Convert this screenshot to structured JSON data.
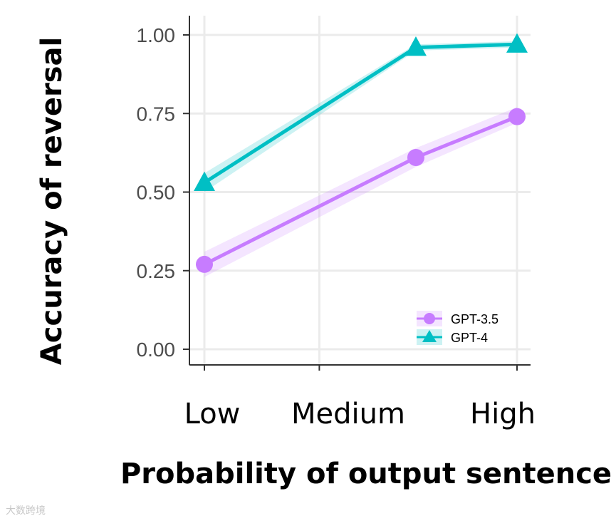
{
  "chart_data": {
    "type": "line",
    "title": "",
    "xlabel": "Probability of output sentence",
    "ylabel": "Accuracy of reversal",
    "categories": [
      "Low",
      "Medium",
      "High"
    ],
    "series_x": [
      0,
      2.3,
      3.4
    ],
    "category_x": [
      0,
      1.25,
      3.4
    ],
    "ylim": [
      0,
      1
    ],
    "yticks": [
      "0.00",
      "0.25",
      "0.50",
      "0.75",
      "1.00"
    ],
    "grid": true,
    "legend": "bottom-right",
    "series": [
      {
        "name": "GPT-3.5",
        "marker": "circle",
        "color": "#c77cff",
        "values": [
          0.27,
          0.61,
          0.74
        ],
        "lower": [
          0.23,
          0.58,
          0.72
        ],
        "upper": [
          0.31,
          0.64,
          0.77
        ]
      },
      {
        "name": "GPT-4",
        "marker": "triangle",
        "color": "#00bfc4",
        "values": [
          0.53,
          0.96,
          0.97
        ],
        "lower": [
          0.5,
          0.95,
          0.96
        ],
        "upper": [
          0.56,
          0.97,
          0.98
        ]
      }
    ]
  },
  "watermark": "大数跨境"
}
